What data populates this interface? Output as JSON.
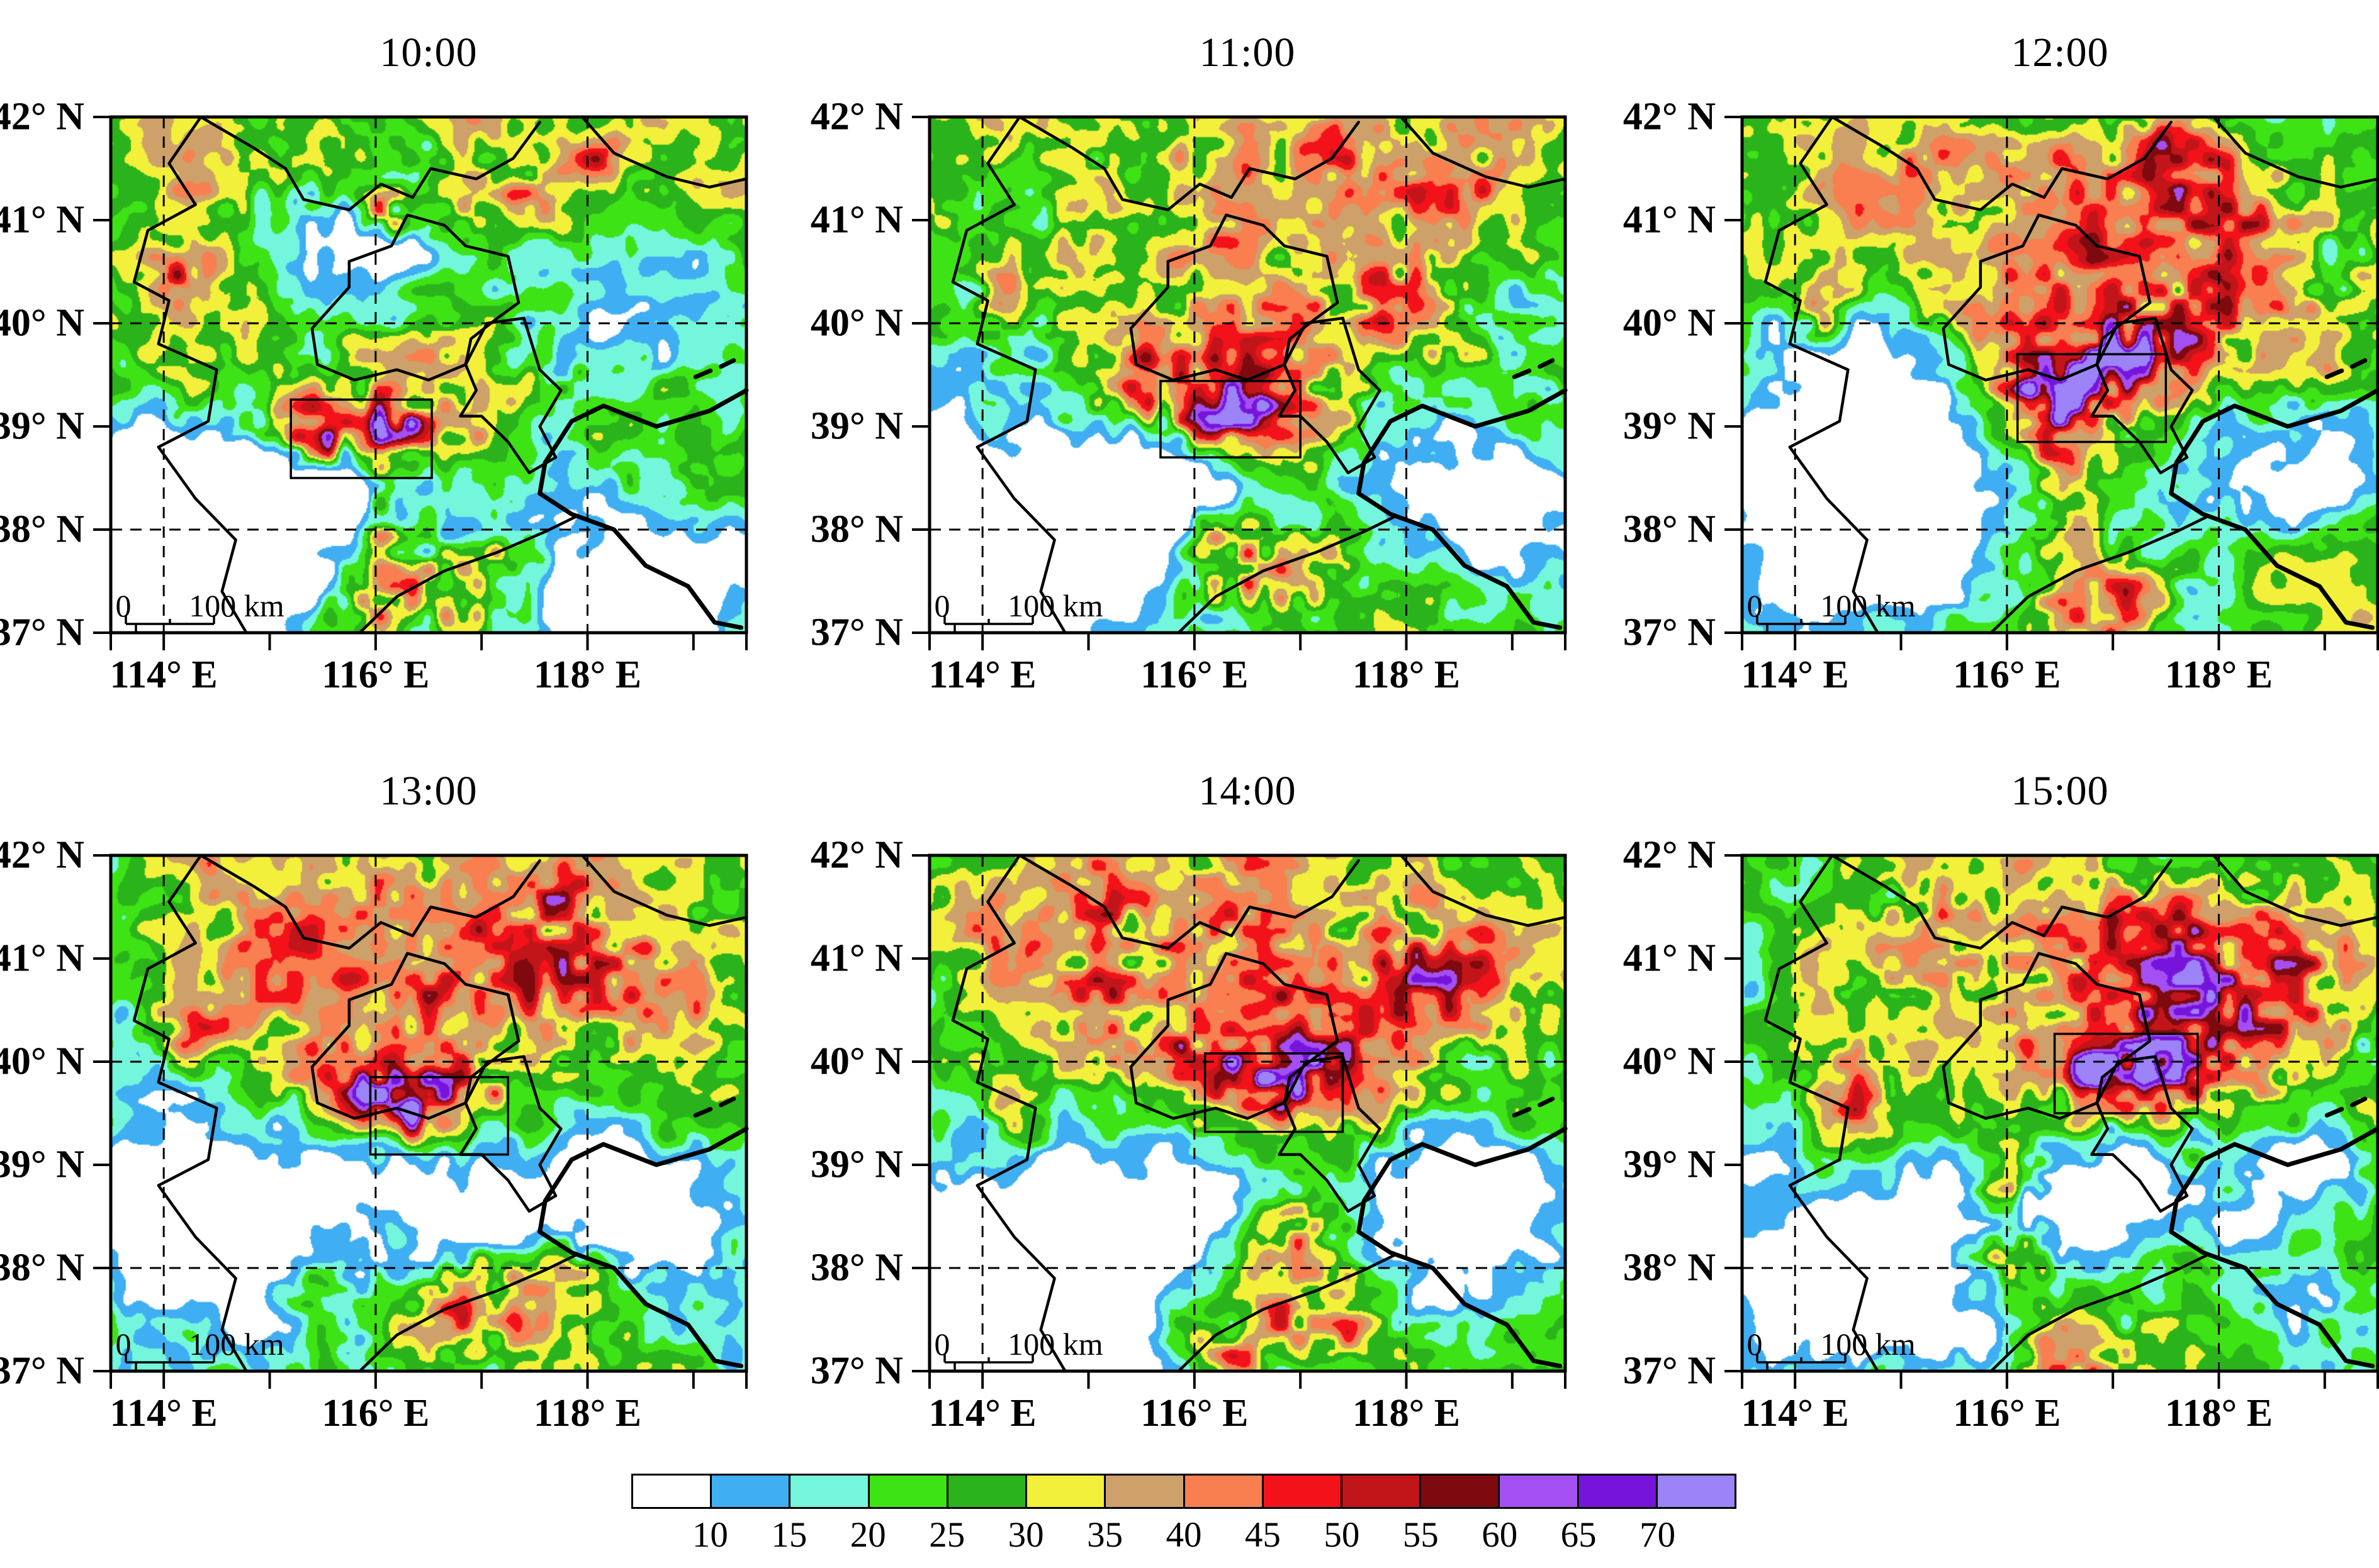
{
  "panels": [
    {
      "title": "10:00",
      "seed": 11,
      "analysis_box": {
        "lon_min": 115.2,
        "lat_min": 38.5,
        "lon_max": 116.53,
        "lat_max": 39.26
      },
      "echo_cores": [
        [
          115.8,
          39.0,
          0.55,
          0.2,
          26
        ],
        [
          116.2,
          38.9,
          0.3,
          0.14,
          22
        ],
        [
          115.45,
          38.8,
          0.25,
          0.18,
          16
        ],
        [
          116.3,
          39.3,
          1.4,
          0.4,
          12
        ],
        [
          115.7,
          41.4,
          1.3,
          0.55,
          8
        ],
        [
          116.05,
          41.05,
          0.22,
          0.16,
          18
        ],
        [
          117.25,
          41.2,
          0.28,
          0.18,
          16
        ],
        [
          118.1,
          41.55,
          0.2,
          0.15,
          14
        ],
        [
          114.15,
          40.45,
          0.18,
          0.2,
          16
        ],
        [
          116.05,
          38.15,
          0.1,
          0.45,
          16
        ],
        [
          116.15,
          37.35,
          0.5,
          0.28,
          22
        ],
        [
          117.0,
          37.6,
          0.45,
          0.3,
          14
        ]
      ],
      "dry_zones": [
        [
          114.3,
          37.75,
          1.0,
          0.85,
          -34
        ],
        [
          115.9,
          40.8,
          0.55,
          0.5,
          -22
        ],
        [
          118.8,
          40.0,
          0.7,
          0.6,
          -24
        ],
        [
          118.6,
          37.6,
          0.8,
          0.6,
          -26
        ],
        [
          115.15,
          38.4,
          0.45,
          0.35,
          -16
        ]
      ]
    },
    {
      "title": "11:00",
      "seed": 22,
      "analysis_box": {
        "lon_min": 115.68,
        "lat_min": 38.7,
        "lon_max": 117.0,
        "lat_max": 39.44
      },
      "echo_cores": [
        [
          116.3,
          39.2,
          0.55,
          0.28,
          26
        ],
        [
          116.05,
          39.05,
          0.18,
          0.13,
          14
        ],
        [
          115.6,
          39.35,
          0.3,
          0.2,
          14
        ],
        [
          116.6,
          39.7,
          1.4,
          0.5,
          12
        ],
        [
          116.3,
          41.3,
          1.5,
          0.65,
          8
        ],
        [
          117.9,
          40.35,
          0.45,
          0.3,
          18
        ],
        [
          118.5,
          41.35,
          0.35,
          0.22,
          16
        ],
        [
          114.2,
          40.3,
          0.2,
          0.25,
          12
        ],
        [
          116.6,
          37.6,
          0.45,
          0.35,
          24
        ],
        [
          116.15,
          38.0,
          0.2,
          0.3,
          12
        ],
        [
          117.4,
          41.7,
          0.3,
          0.2,
          12
        ]
      ],
      "dry_zones": [
        [
          114.35,
          37.8,
          1.0,
          0.9,
          -34
        ],
        [
          118.8,
          38.3,
          0.75,
          0.6,
          -26
        ],
        [
          115.9,
          38.45,
          0.55,
          0.4,
          -20
        ],
        [
          118.9,
          40.15,
          0.5,
          0.45,
          -16
        ]
      ]
    },
    {
      "title": "12:00",
      "seed": 33,
      "analysis_box": {
        "lon_min": 116.1,
        "lat_min": 38.85,
        "lon_max": 117.5,
        "lat_max": 39.7
      },
      "echo_cores": [
        [
          116.6,
          39.4,
          0.5,
          0.32,
          26
        ],
        [
          116.32,
          39.15,
          0.2,
          0.15,
          16
        ],
        [
          117.2,
          39.75,
          0.4,
          0.25,
          14
        ],
        [
          117.8,
          40.35,
          1.0,
          0.65,
          12
        ],
        [
          116.8,
          40.0,
          1.5,
          0.55,
          10
        ],
        [
          116.1,
          41.5,
          1.3,
          0.55,
          8
        ],
        [
          117.6,
          41.6,
          0.35,
          0.25,
          18
        ],
        [
          114.35,
          40.1,
          0.2,
          0.28,
          20
        ],
        [
          116.55,
          38.3,
          0.22,
          0.45,
          18
        ],
        [
          116.9,
          37.35,
          0.45,
          0.3,
          22
        ],
        [
          118.3,
          41.1,
          0.4,
          0.3,
          10
        ]
      ],
      "dry_zones": [
        [
          114.95,
          39.25,
          0.75,
          0.85,
          -28
        ],
        [
          114.5,
          37.9,
          0.85,
          0.75,
          -28
        ],
        [
          118.9,
          38.5,
          0.6,
          0.5,
          -20
        ],
        [
          119.0,
          40.6,
          0.4,
          0.4,
          -12
        ]
      ]
    },
    {
      "title": "13:00",
      "seed": 44,
      "analysis_box": {
        "lon_min": 115.95,
        "lat_min": 39.1,
        "lon_max": 117.25,
        "lat_max": 39.85
      },
      "echo_cores": [
        [
          116.35,
          39.75,
          0.65,
          0.25,
          24
        ],
        [
          116.35,
          39.42,
          0.22,
          0.18,
          26
        ],
        [
          115.9,
          39.6,
          0.3,
          0.2,
          14
        ],
        [
          116.2,
          40.5,
          1.5,
          0.55,
          10
        ],
        [
          116.5,
          41.6,
          1.5,
          0.55,
          8
        ],
        [
          117.9,
          40.9,
          0.8,
          0.35,
          14
        ],
        [
          114.3,
          40.2,
          0.18,
          0.25,
          18
        ],
        [
          116.9,
          37.6,
          0.55,
          0.3,
          20
        ],
        [
          115.45,
          37.85,
          0.3,
          0.18,
          16
        ],
        [
          117.75,
          41.55,
          0.3,
          0.2,
          12
        ],
        [
          117.6,
          38.05,
          0.7,
          0.25,
          10
        ]
      ],
      "dry_zones": [
        [
          114.85,
          38.5,
          0.95,
          0.75,
          -30
        ],
        [
          117.7,
          38.65,
          0.85,
          0.55,
          -26
        ],
        [
          118.95,
          38.3,
          0.5,
          0.45,
          -14
        ]
      ]
    },
    {
      "title": "14:00",
      "seed": 55,
      "analysis_box": {
        "lon_min": 116.1,
        "lat_min": 39.32,
        "lon_max": 117.4,
        "lat_max": 40.08
      },
      "echo_cores": [
        [
          116.75,
          39.85,
          0.5,
          0.28,
          26
        ],
        [
          116.5,
          39.68,
          0.2,
          0.15,
          14
        ],
        [
          116.0,
          40.15,
          0.4,
          0.25,
          12
        ],
        [
          117.4,
          40.6,
          1.2,
          0.65,
          12
        ],
        [
          115.95,
          41.4,
          1.5,
          0.55,
          8
        ],
        [
          115.15,
          40.9,
          0.35,
          0.7,
          14
        ],
        [
          118.25,
          40.9,
          0.4,
          0.28,
          14
        ],
        [
          114.4,
          39.4,
          0.2,
          0.3,
          12
        ],
        [
          117.0,
          38.35,
          0.45,
          0.28,
          18
        ],
        [
          117.25,
          37.45,
          0.45,
          0.28,
          20
        ],
        [
          116.3,
          37.2,
          0.3,
          0.2,
          14
        ]
      ],
      "dry_zones": [
        [
          114.6,
          38.05,
          1.0,
          0.85,
          -32
        ],
        [
          116.2,
          38.65,
          0.5,
          0.4,
          -18
        ],
        [
          118.55,
          38.5,
          0.75,
          0.55,
          -24
        ]
      ]
    },
    {
      "title": "15:00",
      "seed": 66,
      "analysis_box": {
        "lon_min": 116.45,
        "lat_min": 39.5,
        "lon_max": 117.8,
        "lat_max": 40.27
      },
      "echo_cores": [
        [
          117.0,
          39.9,
          0.5,
          0.3,
          28
        ],
        [
          116.85,
          39.8,
          0.2,
          0.15,
          12
        ],
        [
          117.0,
          41.0,
          1.5,
          0.65,
          10
        ],
        [
          117.85,
          40.25,
          1.0,
          0.55,
          10
        ],
        [
          116.15,
          38.9,
          0.28,
          0.22,
          22
        ],
        [
          115.95,
          38.15,
          0.35,
          0.22,
          22
        ],
        [
          114.55,
          39.55,
          0.22,
          0.45,
          16
        ],
        [
          118.35,
          40.7,
          0.8,
          0.5,
          12
        ],
        [
          117.6,
          41.35,
          0.5,
          0.3,
          10
        ],
        [
          116.6,
          37.15,
          0.4,
          0.25,
          18
        ],
        [
          115.2,
          41.3,
          0.4,
          0.5,
          10
        ]
      ],
      "dry_zones": [
        [
          114.8,
          38.2,
          0.95,
          0.8,
          -30
        ],
        [
          117.65,
          38.75,
          0.75,
          0.5,
          -24
        ],
        [
          116.65,
          38.5,
          0.35,
          0.3,
          -14
        ],
        [
          119.0,
          39.0,
          0.4,
          0.4,
          -12
        ]
      ]
    }
  ],
  "axes": {
    "lon_range": [
      113.5,
      119.5
    ],
    "lat_range": [
      37,
      42
    ],
    "x_ticks": [
      {
        "value": 114,
        "label": "114° E"
      },
      {
        "value": 116,
        "label": "116° E"
      },
      {
        "value": 118,
        "label": "118° E"
      }
    ],
    "x_minor_ticks": [
      113.5,
      114,
      115,
      116,
      117,
      118,
      119,
      119.5
    ],
    "y_ticks": [
      {
        "value": 42,
        "label": "42° N"
      },
      {
        "value": 41,
        "label": "41° N"
      },
      {
        "value": 40,
        "label": "40° N"
      },
      {
        "value": 39,
        "label": "39° N"
      },
      {
        "value": 38,
        "label": "38° N"
      },
      {
        "value": 37,
        "label": "37° N"
      }
    ],
    "x_gridlines": [
      114,
      116,
      118
    ],
    "y_gridlines": [
      38,
      40
    ]
  },
  "scale_bar": {
    "zero_label": "0",
    "length_label": "100 km"
  },
  "colorbar": {
    "labels": [
      "10",
      "15",
      "20",
      "25",
      "30",
      "35",
      "40",
      "45",
      "50",
      "55",
      "60",
      "65",
      "70"
    ],
    "colors": [
      "#FFFFFF",
      "#3FAEF2",
      "#74F6DC",
      "#3EE316",
      "#2BB31C",
      "#F3F03B",
      "#CDA169",
      "#F97E50",
      "#F3121A",
      "#C2151A",
      "#7E0A0F",
      "#A44FF1",
      "#7614DC",
      "#9C83F7"
    ]
  },
  "map_boundaries": {
    "borders": [
      [
        [
          114.35,
          42
        ],
        [
          114.05,
          41.55
        ],
        [
          114.3,
          41.15
        ],
        [
          113.85,
          40.9
        ],
        [
          113.72,
          40.4
        ],
        [
          114.05,
          40.22
        ],
        [
          113.95,
          39.8
        ],
        [
          114.5,
          39.55
        ],
        [
          114.42,
          39.05
        ],
        [
          113.95,
          38.8
        ],
        [
          114.3,
          38.3
        ],
        [
          114.68,
          37.9
        ],
        [
          114.55,
          37.4
        ],
        [
          114.78,
          37.0
        ]
      ],
      [
        [
          114.35,
          42
        ],
        [
          114.85,
          41.7
        ],
        [
          115.15,
          41.5
        ],
        [
          115.32,
          41.2
        ],
        [
          115.75,
          41.1
        ],
        [
          116.05,
          41.35
        ],
        [
          116.35,
          41.22
        ],
        [
          116.52,
          41.5
        ],
        [
          116.95,
          41.4
        ],
        [
          117.3,
          41.6
        ],
        [
          117.55,
          41.95
        ]
      ],
      [
        [
          117.95,
          42
        ],
        [
          118.25,
          41.65
        ],
        [
          118.75,
          41.42
        ],
        [
          119.15,
          41.32
        ],
        [
          119.5,
          41.4
        ]
      ],
      [
        [
          115.45,
          39.6
        ],
        [
          115.4,
          39.95
        ],
        [
          115.75,
          40.35
        ],
        [
          115.75,
          40.6
        ],
        [
          116.15,
          40.75
        ],
        [
          116.3,
          41.05
        ],
        [
          116.65,
          40.95
        ],
        [
          116.85,
          40.75
        ],
        [
          117.25,
          40.65
        ],
        [
          117.35,
          40.2
        ],
        [
          117.15,
          40.05
        ],
        [
          116.9,
          39.85
        ],
        [
          116.85,
          39.6
        ],
        [
          116.5,
          39.45
        ],
        [
          116.2,
          39.55
        ],
        [
          115.8,
          39.45
        ],
        [
          115.45,
          39.6
        ]
      ],
      [
        [
          116.85,
          39.6
        ],
        [
          117.05,
          40.0
        ],
        [
          117.4,
          40.05
        ],
        [
          117.55,
          39.55
        ],
        [
          117.75,
          39.35
        ],
        [
          117.55,
          39.0
        ],
        [
          117.7,
          38.7
        ],
        [
          117.45,
          38.55
        ],
        [
          117.25,
          38.85
        ],
        [
          117.0,
          39.1
        ],
        [
          116.8,
          39.1
        ],
        [
          116.95,
          39.35
        ],
        [
          116.85,
          39.6
        ]
      ],
      [
        [
          115.85,
          37.0
        ],
        [
          116.2,
          37.35
        ],
        [
          116.65,
          37.6
        ],
        [
          117.15,
          37.78
        ],
        [
          117.6,
          37.98
        ],
        [
          117.88,
          38.12
        ]
      ]
    ],
    "coast": [
      [
        119.5,
        39.35
      ],
      [
        119.15,
        39.15
      ],
      [
        118.65,
        39.0
      ],
      [
        118.15,
        39.2
      ],
      [
        117.85,
        39.05
      ],
      [
        117.6,
        38.65
      ],
      [
        117.55,
        38.35
      ],
      [
        117.85,
        38.15
      ],
      [
        118.25,
        38.0
      ],
      [
        118.55,
        37.65
      ],
      [
        118.95,
        37.45
      ],
      [
        119.2,
        37.1
      ],
      [
        119.45,
        37.05
      ]
    ],
    "coast_dashes": [
      [
        [
          119.02,
          39.48
        ],
        [
          119.16,
          39.54
        ]
      ],
      [
        [
          119.26,
          39.58
        ],
        [
          119.38,
          39.64
        ]
      ]
    ]
  },
  "chart_data": {
    "type": "heatmap",
    "panel_times": [
      "10:00",
      "11:00",
      "12:00",
      "13:00",
      "14:00",
      "15:00"
    ],
    "lon_range": [
      113.5,
      119.5
    ],
    "lat_range": [
      37,
      42
    ],
    "level_boundaries": [
      10,
      15,
      20,
      25,
      30,
      35,
      40,
      45,
      50,
      55,
      60,
      65,
      70
    ],
    "analysis_box_by_time": [
      {
        "time": "10:00",
        "lon": [
          115.2,
          116.53
        ],
        "lat": [
          38.5,
          39.26
        ]
      },
      {
        "time": "11:00",
        "lon": [
          115.68,
          117.0
        ],
        "lat": [
          38.7,
          39.44
        ]
      },
      {
        "time": "12:00",
        "lon": [
          116.1,
          117.5
        ],
        "lat": [
          38.85,
          39.7
        ]
      },
      {
        "time": "13:00",
        "lon": [
          115.95,
          117.25
        ],
        "lat": [
          39.1,
          39.85
        ]
      },
      {
        "time": "14:00",
        "lon": [
          116.1,
          117.4
        ],
        "lat": [
          39.32,
          40.08
        ]
      },
      {
        "time": "15:00",
        "lon": [
          116.45,
          117.8
        ],
        "lat": [
          39.5,
          40.27
        ]
      }
    ],
    "max_echo_center_by_time": [
      {
        "time": "10:00",
        "lon": 115.8,
        "lat": 39.0
      },
      {
        "time": "11:00",
        "lon": 116.3,
        "lat": 39.2
      },
      {
        "time": "12:00",
        "lon": 116.6,
        "lat": 39.4
      },
      {
        "time": "13:00",
        "lon": 116.35,
        "lat": 39.42
      },
      {
        "time": "14:00",
        "lon": 116.75,
        "lat": 39.85
      },
      {
        "time": "15:00",
        "lon": 117.0,
        "lat": 39.9
      }
    ]
  }
}
